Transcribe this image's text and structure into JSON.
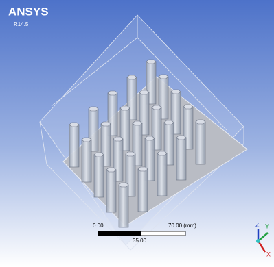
{
  "header": {
    "title": "ANSYS",
    "version": "R14.5"
  },
  "scale_bar": {
    "start_label": "0.00",
    "end_label": "70.00 (mm)",
    "mid_label": "35.00"
  },
  "triad": {
    "z": "Z",
    "y": "Y",
    "x": "X"
  }
}
